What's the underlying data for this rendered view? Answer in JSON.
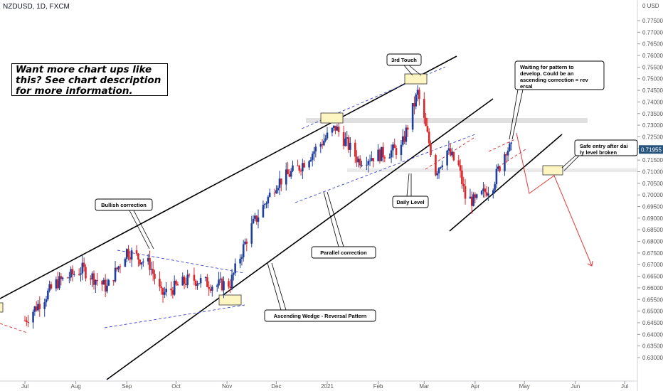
{
  "header": {
    "symbol_line": "NZDUSD, 1D, FXCM"
  },
  "callout": {
    "text": "Want more chart ups like this? See chart description for more information."
  },
  "chart_data": {
    "type": "candlestick",
    "symbol": "NZDUSD",
    "timeframe": "1D",
    "source": "FXCM",
    "y_axis": {
      "side": "right",
      "currency_label": "USD",
      "ticks": [
        0.63,
        0.635,
        0.64,
        0.645,
        0.65,
        0.655,
        0.66,
        0.665,
        0.67,
        0.675,
        0.68,
        0.685,
        0.69,
        0.695,
        0.7,
        0.705,
        0.71,
        0.715,
        0.72,
        0.725,
        0.73,
        0.735,
        0.74,
        0.745,
        0.75,
        0.755,
        0.76,
        0.765,
        0.77,
        0.775
      ],
      "tick_labels": [
        "0.63000",
        "0.63500",
        "0.64000",
        "0.64500",
        "0.65000",
        "0.65500",
        "0.66000",
        "0.66500",
        "0.67000",
        "0.67500",
        "0.68000",
        "0.68500",
        "0.69000",
        "0.69500",
        "0.70000",
        "0.70500",
        "0.71000",
        "0.71500",
        "0.72000",
        "0.72500",
        "0.73000",
        "0.73500",
        "0.74000",
        "0.74500",
        "0.75000",
        "0.75500",
        "0.76000",
        "0.76500",
        "0.77000",
        "0.77500"
      ],
      "top_label": "0 USD",
      "range": [
        0.628,
        0.78
      ]
    },
    "x_axis": {
      "labels": [
        "Jul",
        "Aug",
        "Sep",
        "Oct",
        "Nov",
        "Dec",
        "2021",
        "Feb",
        "Mar",
        "Apr",
        "May",
        "Jun",
        "Jul"
      ]
    },
    "current_price": {
      "value": 0.71955,
      "label": "0.71955",
      "color": "#26547c"
    },
    "colors": {
      "up": "#1e3f9e",
      "down": "#d9262a"
    },
    "key_points": [
      {
        "date": "2020-07-01",
        "price": 0.646
      },
      {
        "date": "2020-07-20",
        "price": 0.662
      },
      {
        "date": "2020-08-05",
        "price": 0.668
      },
      {
        "date": "2020-08-20",
        "price": 0.66
      },
      {
        "date": "2020-09-01",
        "price": 0.676
      },
      {
        "date": "2020-09-15",
        "price": 0.67
      },
      {
        "date": "2020-09-22",
        "price": 0.657
      },
      {
        "date": "2020-10-10",
        "price": 0.664
      },
      {
        "date": "2020-10-25",
        "price": 0.661
      },
      {
        "date": "2020-11-03",
        "price": 0.662
      },
      {
        "date": "2020-11-15",
        "price": 0.685
      },
      {
        "date": "2020-12-01",
        "price": 0.705
      },
      {
        "date": "2020-12-15",
        "price": 0.712
      },
      {
        "date": "2021-01-06",
        "price": 0.729
      },
      {
        "date": "2021-01-20",
        "price": 0.715
      },
      {
        "date": "2021-02-05",
        "price": 0.718
      },
      {
        "date": "2021-02-15",
        "price": 0.72
      },
      {
        "date": "2021-02-25",
        "price": 0.744
      },
      {
        "date": "2021-03-08",
        "price": 0.71
      },
      {
        "date": "2021-03-15",
        "price": 0.719
      },
      {
        "date": "2021-03-22",
        "price": 0.712
      },
      {
        "date": "2021-03-26",
        "price": 0.699
      },
      {
        "date": "2021-04-01",
        "price": 0.697
      },
      {
        "date": "2021-04-12",
        "price": 0.705
      },
      {
        "date": "2021-04-20",
        "price": 0.72
      },
      {
        "date": "2021-04-24",
        "price": 0.7196
      }
    ],
    "annotations": [
      {
        "text": "3rd Touch"
      },
      {
        "text": "Waiting for pattern to develop. Could be an ascending correction = reversal"
      },
      {
        "text": "Safe entry after daily level broken"
      },
      {
        "text": "Daily Level"
      },
      {
        "text": "Parallel correction"
      },
      {
        "text": "Bullish correction"
      },
      {
        "text": "Ascending Wedge - Reversal Pattern"
      }
    ],
    "grid": false,
    "legend": "none"
  }
}
